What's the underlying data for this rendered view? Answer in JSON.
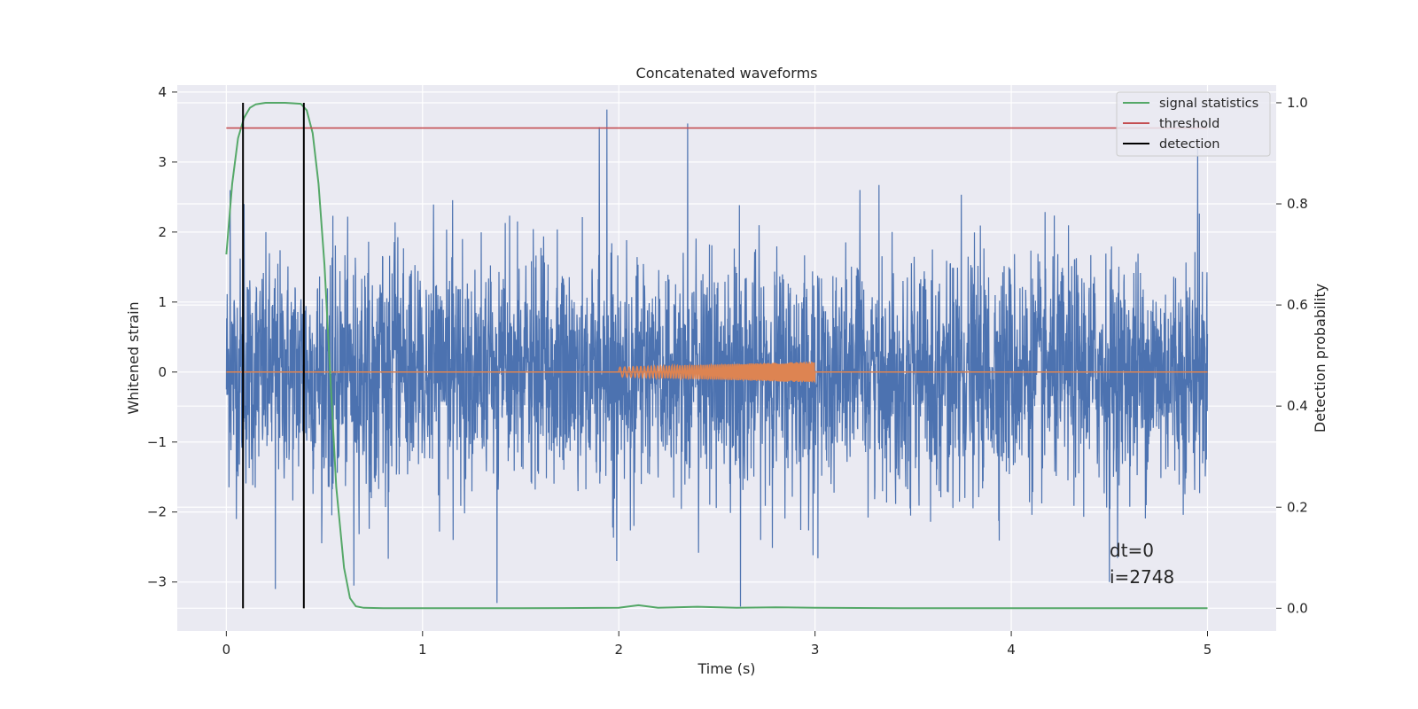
{
  "chart_data": {
    "type": "line",
    "title": "Concatenated waveforms",
    "xlabel": "Time (s)",
    "ylabel": "Whitened strain",
    "y2label": "Detection probability",
    "xlim": [
      -0.25,
      5.35
    ],
    "ylim": [
      -3.7,
      4.1
    ],
    "y2lim": [
      -0.045,
      1.035
    ],
    "xticks": [
      0,
      1,
      2,
      3,
      4,
      5
    ],
    "xtick_labels": [
      "0",
      "1",
      "2",
      "3",
      "4",
      "5"
    ],
    "yticks": [
      -3,
      -2,
      -1,
      0,
      1,
      2,
      3,
      4
    ],
    "ytick_labels": [
      "−3",
      "−2",
      "−1",
      "0",
      "1",
      "2",
      "3",
      "4"
    ],
    "y2ticks": [
      0.0,
      0.2,
      0.4,
      0.6,
      0.8,
      1.0
    ],
    "y2tick_labels": [
      "0.0",
      "0.2",
      "0.4",
      "0.6",
      "0.8",
      "1.0"
    ],
    "grid": true,
    "legend_placement": "top-right",
    "legend": [
      "signal statistics",
      "threshold",
      "detection"
    ],
    "annotations": [
      "dt=0",
      "i=2748"
    ],
    "colors": {
      "strain": "#4c72b0",
      "injected_signal": "#dd8452",
      "signal_statistics": "#55a868",
      "threshold": "#c44e52",
      "detection": "#000000",
      "background": "#eaeaf2",
      "grid": "#ffffff"
    },
    "series": [
      {
        "name": "signal statistics",
        "axis": "right",
        "x": [
          0.0,
          0.03,
          0.06,
          0.09,
          0.12,
          0.15,
          0.2,
          0.3,
          0.38,
          0.41,
          0.44,
          0.47,
          0.5,
          0.53,
          0.56,
          0.6,
          0.63,
          0.66,
          0.7,
          0.8,
          1.0,
          1.5,
          2.0,
          2.1,
          2.2,
          2.4,
          2.6,
          2.8,
          3.0,
          3.5,
          4.0,
          4.5,
          5.0
        ],
        "values": [
          0.7,
          0.84,
          0.93,
          0.97,
          0.99,
          0.997,
          1.0,
          1.0,
          0.998,
          0.985,
          0.94,
          0.84,
          0.68,
          0.46,
          0.24,
          0.08,
          0.02,
          0.004,
          0.001,
          0.0,
          0.0,
          0.0,
          0.001,
          0.006,
          0.001,
          0.003,
          0.001,
          0.002,
          0.001,
          0.0,
          0.0,
          0.0,
          0.0
        ]
      },
      {
        "name": "threshold",
        "axis": "right",
        "x": [
          0.0,
          5.0
        ],
        "values": [
          0.95,
          0.95
        ]
      },
      {
        "name": "detection",
        "axis": "right",
        "x": [
          0.085,
          0.395
        ],
        "ymin": [
          0.0,
          0.0
        ],
        "ymax": [
          1.0,
          1.0
        ]
      },
      {
        "name": "",
        "axis": "left",
        "description_values": "whitened strain noise",
        "x": [
          0.0,
          5.0
        ],
        "envelope_typical": [
          -1.5,
          1.5
        ],
        "peaks": [
          [
            0.02,
            2.6
          ],
          [
            0.09,
            2.4
          ],
          [
            0.25,
            -3.1
          ],
          [
            1.38,
            -3.3
          ],
          [
            1.9,
            3.5
          ],
          [
            1.94,
            3.75
          ],
          [
            2.35,
            3.55
          ],
          [
            2.62,
            -3.35
          ],
          [
            4.95,
            3.2
          ],
          [
            4.5,
            -3.0
          ],
          [
            0.65,
            -3.05
          ]
        ]
      },
      {
        "name": "",
        "axis": "left",
        "description_values": "injected chirp",
        "x": [
          2.0,
          3.0
        ],
        "amplitude_start": 0.07,
        "amplitude_end": 0.15
      }
    ]
  }
}
